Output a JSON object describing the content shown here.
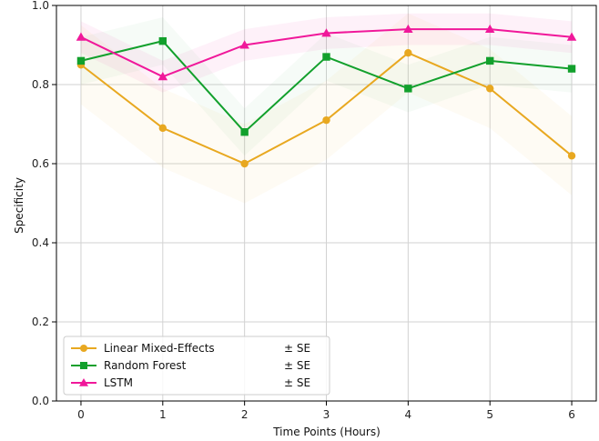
{
  "chart_data": {
    "type": "line",
    "xlabel": "Time Points (Hours)",
    "ylabel": "Specificity",
    "x": [
      0,
      1,
      2,
      3,
      4,
      5,
      6
    ],
    "xlim": [
      -0.3,
      6.3
    ],
    "ylim": [
      0.0,
      1.0
    ],
    "xticks": [
      "0",
      "1",
      "2",
      "3",
      "4",
      "5",
      "6"
    ],
    "yticks": [
      "0.0",
      "0.2",
      "0.4",
      "0.6",
      "0.8",
      "1.0"
    ],
    "grid": true,
    "legend_position": "lower-left",
    "band_label": "± SE",
    "series": [
      {
        "name": "Linear Mixed-Effects",
        "values": [
          0.85,
          0.69,
          0.6,
          0.71,
          0.88,
          0.79,
          0.62
        ],
        "color": "#E8A820",
        "marker": "circle"
      },
      {
        "name": "Random Forest",
        "values": [
          0.86,
          0.91,
          0.68,
          0.87,
          0.79,
          0.86,
          0.84
        ],
        "color": "#12A02C",
        "marker": "square"
      },
      {
        "name": "LSTM",
        "values": [
          0.92,
          0.82,
          0.9,
          0.93,
          0.94,
          0.94,
          0.92
        ],
        "color": "#F0189A",
        "marker": "triangle"
      }
    ]
  }
}
